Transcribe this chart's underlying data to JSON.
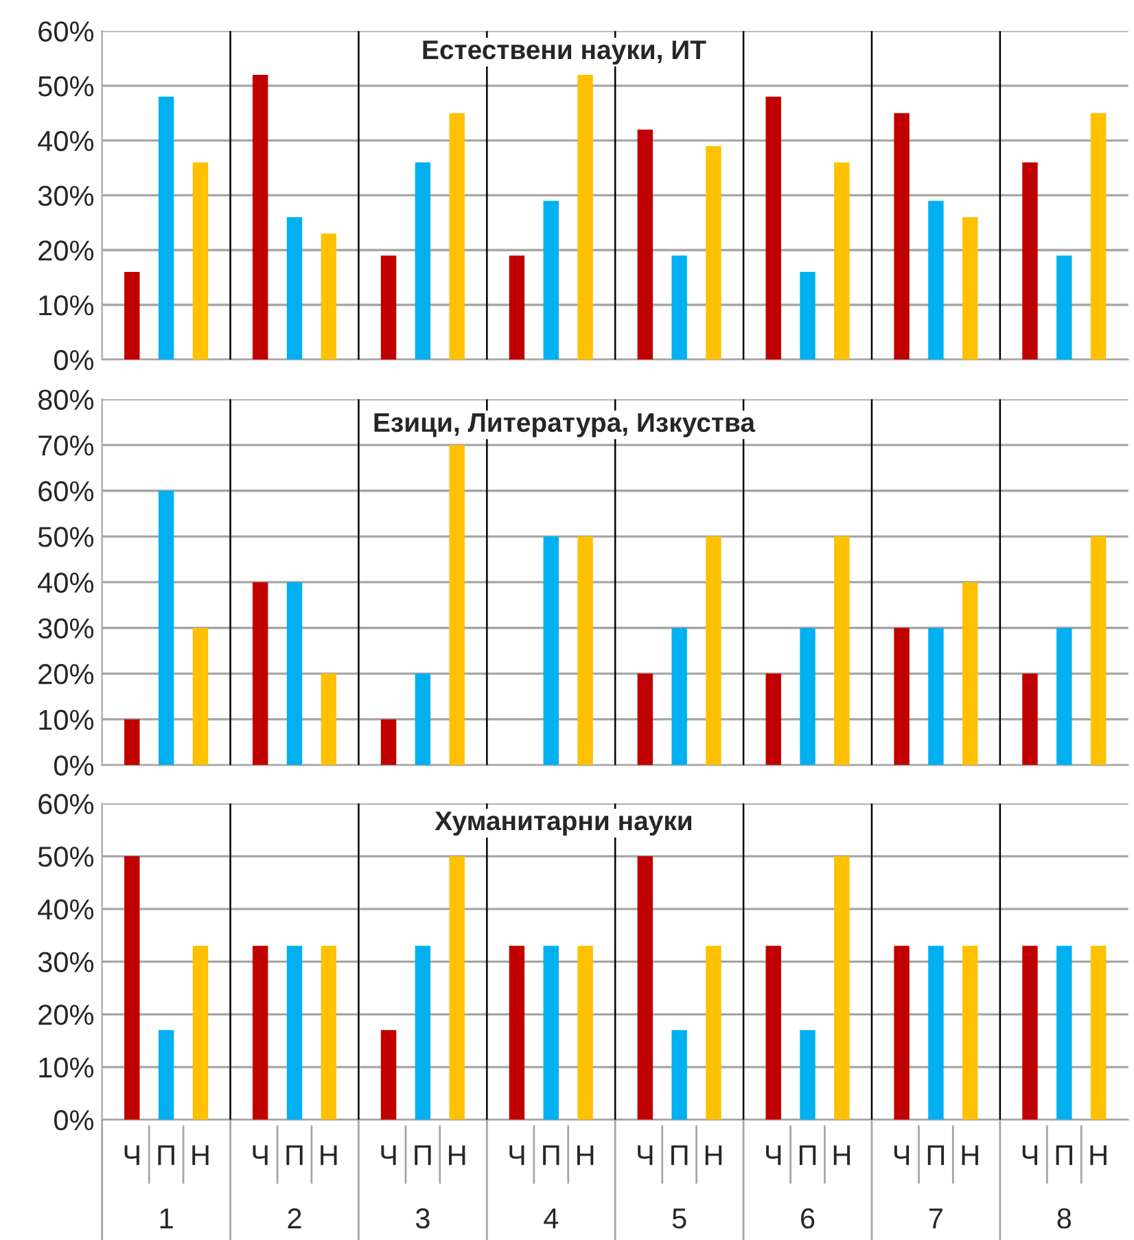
{
  "chart_data": [
    {
      "type": "bar",
      "title": "Естествени науки, ИТ",
      "categories": [
        "1",
        "2",
        "3",
        "4",
        "5",
        "6",
        "7",
        "8"
      ],
      "series": [
        {
          "color": "#c00000",
          "values": [
            16,
            52,
            19,
            19,
            42,
            48,
            45,
            36
          ]
        },
        {
          "color": "#00b0f0",
          "values": [
            48,
            26,
            36,
            29,
            19,
            16,
            29,
            19
          ]
        },
        {
          "color": "#ffc000",
          "values": [
            36,
            23,
            45,
            52,
            39,
            36,
            26,
            45
          ]
        }
      ],
      "ylim": [
        0,
        60
      ],
      "yticks": [
        {
          "value": 0,
          "label": "0%"
        },
        {
          "value": 10,
          "label": "10%"
        },
        {
          "value": 20,
          "label": "20%"
        },
        {
          "value": 30,
          "label": "30%"
        },
        {
          "value": 40,
          "label": "40%"
        },
        {
          "value": 50,
          "label": "50%"
        },
        {
          "value": 60,
          "label": "60%"
        }
      ],
      "grid": "y",
      "legend": false,
      "tick_labels": "y"
    },
    {
      "type": "bar",
      "title": "Езици, Литература, Изкуства",
      "categories": [
        "1",
        "2",
        "3",
        "4",
        "5",
        "6",
        "7",
        "8"
      ],
      "series": [
        {
          "color": "#c00000",
          "values": [
            10,
            40,
            10,
            null,
            20,
            20,
            30,
            20
          ]
        },
        {
          "color": "#00b0f0",
          "values": [
            60,
            40,
            20,
            50,
            30,
            30,
            30,
            30
          ]
        },
        {
          "color": "#ffc000",
          "values": [
            30,
            20,
            70,
            50,
            50,
            50,
            40,
            50
          ]
        }
      ],
      "ylim": [
        0,
        80
      ],
      "yticks": [
        {
          "value": 0,
          "label": "0%"
        },
        {
          "value": 10,
          "label": "10%"
        },
        {
          "value": 20,
          "label": "20%"
        },
        {
          "value": 30,
          "label": "30%"
        },
        {
          "value": 40,
          "label": "40%"
        },
        {
          "value": 50,
          "label": "50%"
        },
        {
          "value": 60,
          "label": "60%"
        },
        {
          "value": 70,
          "label": "70%"
        },
        {
          "value": 80,
          "label": "80%"
        }
      ],
      "grid": "y",
      "legend": false,
      "tick_labels": "y"
    },
    {
      "type": "bar",
      "title": "Хуманитарни науки",
      "categories": [
        "1",
        "2",
        "3",
        "4",
        "5",
        "6",
        "7",
        "8"
      ],
      "series": [
        {
          "name": "Ч",
          "color": "#c00000",
          "values": [
            50,
            33,
            17,
            33,
            50,
            33,
            33,
            33
          ]
        },
        {
          "name": "П",
          "color": "#00b0f0",
          "values": [
            17,
            33,
            33,
            33,
            17,
            17,
            33,
            33
          ]
        },
        {
          "name": "Н",
          "color": "#ffc000",
          "values": [
            33,
            33,
            50,
            33,
            33,
            50,
            33,
            33
          ]
        }
      ],
      "ylim": [
        0,
        60
      ],
      "yticks": [
        {
          "value": 0,
          "label": "0%"
        },
        {
          "value": 10,
          "label": "10%"
        },
        {
          "value": 20,
          "label": "20%"
        },
        {
          "value": 30,
          "label": "30%"
        },
        {
          "value": 40,
          "label": "40%"
        },
        {
          "value": 50,
          "label": "50%"
        },
        {
          "value": 60,
          "label": "60%"
        }
      ],
      "grid": "y",
      "legend": false
    }
  ]
}
